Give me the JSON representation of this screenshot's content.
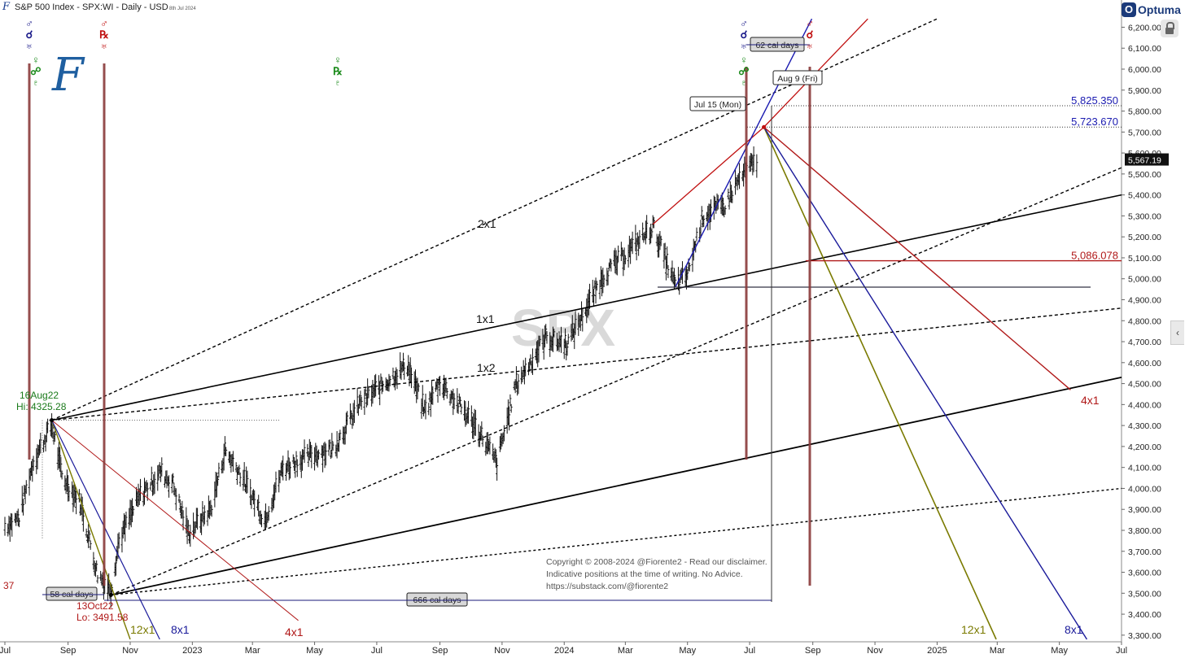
{
  "header": {
    "title": "S&P 500 Index - SPX:WI - Daily - USD",
    "date": "8th Jul 2024"
  },
  "branding": {
    "optuma_label": "Optuma",
    "optuma_mark": "O",
    "side_tab_glyph": "‹",
    "small_logo_glyph": "F",
    "fiorente_glyph": "F",
    "lock_icon": "lock-icon"
  },
  "chart_data": {
    "type": "line",
    "title": "S&P 500 Index - SPX:WI - Daily - USD",
    "y_axis": {
      "ylim": [
        3280,
        6260
      ],
      "ticks": [
        3300,
        3400,
        3500,
        3600,
        3700,
        3800,
        3900,
        4000,
        4100,
        4200,
        4300,
        4400,
        4500,
        4600,
        4700,
        4800,
        4900,
        5000,
        5100,
        5200,
        5300,
        5400,
        5500,
        5600,
        5700,
        5800,
        5900,
        6000,
        6100,
        6200
      ],
      "tick_labels": [
        "3,300.00",
        "3,400.00",
        "3,500.00",
        "3,600.00",
        "3,700.00",
        "3,800.00",
        "3,900.00",
        "4,000.00",
        "4,100.00",
        "4,200.00",
        "4,300.00",
        "4,400.00",
        "4,500.00",
        "4,600.00",
        "4,700.00",
        "4,800.00",
        "4,900.00",
        "5,000.00",
        "5,100.00",
        "5,200.00",
        "5,300.00",
        "5,400.00",
        "5,500.00",
        "5,600.00",
        "5,700.00",
        "5,800.00",
        "5,900.00",
        "6,000.00",
        "6,100.00",
        "6,200.00"
      ],
      "last_price_label": "5,567.19",
      "last_price": 5567.19
    },
    "x_axis": {
      "range": [
        "2022-07-01",
        "2025-07-01"
      ],
      "ticks": [
        {
          "label": "Jul",
          "date": "2022-07-01"
        },
        {
          "label": "Sep",
          "date": "2022-09-01"
        },
        {
          "label": "Nov",
          "date": "2022-11-01"
        },
        {
          "label": "2023",
          "date": "2023-01-01"
        },
        {
          "label": "Mar",
          "date": "2023-03-01"
        },
        {
          "label": "May",
          "date": "2023-05-01"
        },
        {
          "label": "Jul",
          "date": "2023-07-01"
        },
        {
          "label": "Sep",
          "date": "2023-09-01"
        },
        {
          "label": "Nov",
          "date": "2023-11-01"
        },
        {
          "label": "2024",
          "date": "2024-01-01"
        },
        {
          "label": "Mar",
          "date": "2024-03-01"
        },
        {
          "label": "May",
          "date": "2024-05-01"
        },
        {
          "label": "Jul",
          "date": "2024-07-01"
        },
        {
          "label": "Sep",
          "date": "2024-09-01"
        },
        {
          "label": "Nov",
          "date": "2024-11-01"
        },
        {
          "label": "2025",
          "date": "2025-01-01"
        },
        {
          "label": "Mar",
          "date": "2025-03-01"
        },
        {
          "label": "May",
          "date": "2025-05-01"
        },
        {
          "label": "Jul",
          "date": "2025-07-01"
        }
      ]
    },
    "price_series": [
      [
        "2022-07-01",
        3820
      ],
      [
        "2022-07-15",
        3860
      ],
      [
        "2022-07-29",
        4130
      ],
      [
        "2022-08-16",
        4305
      ],
      [
        "2022-08-26",
        4060
      ],
      [
        "2022-09-13",
        3930
      ],
      [
        "2022-09-30",
        3590
      ],
      [
        "2022-10-13",
        3520
      ],
      [
        "2022-10-21",
        3750
      ],
      [
        "2022-11-10",
        3960
      ],
      [
        "2022-12-01",
        4080
      ],
      [
        "2022-12-13",
        4020
      ],
      [
        "2022-12-28",
        3790
      ],
      [
        "2023-01-19",
        3900
      ],
      [
        "2023-02-02",
        4180
      ],
      [
        "2023-02-16",
        4080
      ],
      [
        "2023-03-13",
        3850
      ],
      [
        "2023-03-31",
        4100
      ],
      [
        "2023-04-28",
        4160
      ],
      [
        "2023-05-19",
        4190
      ],
      [
        "2023-06-15",
        4410
      ],
      [
        "2023-07-31",
        4590
      ],
      [
        "2023-08-17",
        4370
      ],
      [
        "2023-09-01",
        4510
      ],
      [
        "2023-10-06",
        4300
      ],
      [
        "2023-10-27",
        4120
      ],
      [
        "2023-11-14",
        4490
      ],
      [
        "2023-12-14",
        4720
      ],
      [
        "2024-01-04",
        4690
      ],
      [
        "2024-02-09",
        5020
      ],
      [
        "2024-03-08",
        5150
      ],
      [
        "2024-03-28",
        5250
      ],
      [
        "2024-04-19",
        4970
      ],
      [
        "2024-05-01",
        5020
      ],
      [
        "2024-05-16",
        5300
      ],
      [
        "2024-06-07",
        5350
      ],
      [
        "2024-06-20",
        5470
      ],
      [
        "2024-07-08",
        5567
      ]
    ],
    "series": [
      {
        "name": "1x1",
        "points": [
          [
            "2022-08-16",
            4325.28
          ],
          [
            "2025-07-01",
            5400
          ]
        ]
      },
      {
        "name": "2x1",
        "points": [
          [
            "2022-08-16",
            4325.28
          ],
          [
            "2025-01-01",
            6240
          ]
        ]
      },
      {
        "name": "1x2",
        "points": [
          [
            "2022-08-16",
            4325.28
          ],
          [
            "2025-07-01",
            4860
          ]
        ]
      },
      {
        "name": "",
        "points": [
          [
            "2022-10-13",
            3491.58
          ],
          [
            "2025-07-01",
            4530
          ]
        ]
      },
      {
        "name": "",
        "points": [
          [
            "2022-10-13",
            3491.58
          ],
          [
            "2025-07-01",
            4000
          ]
        ]
      },
      {
        "name": "",
        "points": [
          [
            "2022-10-13",
            3491.58
          ],
          [
            "2025-07-01",
            5530
          ]
        ]
      },
      {
        "name": "12x1",
        "points": [
          [
            "2022-08-16",
            4325.28
          ],
          [
            "2022-11-01",
            3280
          ]
        ]
      },
      {
        "name": "8x1",
        "points": [
          [
            "2022-08-16",
            4325.28
          ],
          [
            "2022-11-30",
            3280
          ]
        ]
      },
      {
        "name": "4x1",
        "points": [
          [
            "2022-08-16",
            4325.28
          ],
          [
            "2023-04-15",
            3370
          ]
        ]
      },
      {
        "name": "12x1",
        "points": [
          [
            "2024-07-15",
            5723.67
          ],
          [
            "2025-02-28",
            3280
          ]
        ]
      },
      {
        "name": "8x1",
        "points": [
          [
            "2024-07-15",
            5723.67
          ],
          [
            "2025-05-28",
            3280
          ]
        ]
      },
      {
        "name": "4x1",
        "points": [
          [
            "2024-07-15",
            5723.67
          ],
          [
            "2025-05-12",
            4470
          ]
        ]
      },
      {
        "name": "",
        "points": [
          [
            "2024-03-28",
            5260
          ],
          [
            "2024-07-15",
            5723.67
          ],
          [
            "2024-10-25",
            6240
          ]
        ]
      },
      {
        "name": "",
        "points": [
          [
            "2024-04-19",
            4960
          ],
          [
            "2024-08-31",
            6240
          ]
        ]
      }
    ],
    "levels": [
      {
        "label": "5,825.350",
        "value": 5825.35
      },
      {
        "label": "5,723.670",
        "value": 5723.67
      },
      {
        "label": "5,086.078",
        "value": 5086.078
      },
      {
        "label": "",
        "value": 4960
      }
    ],
    "annotations": [
      {
        "text": "16Aug22",
        "date": "2022-08-16",
        "value": 4325.28
      },
      {
        "text": "Hi: 4325.28",
        "date": "2022-08-16",
        "value": 4325.28
      },
      {
        "text": "13Oct22",
        "date": "2022-10-13",
        "value": 3491.58
      },
      {
        "text": "Lo: 3491.58",
        "date": "2022-10-13",
        "value": 3491.58
      },
      {
        "text": "Jul 15 (Mon)",
        "date": "2024-07-15"
      },
      {
        "text": "Aug 9 (Fri)",
        "date": "2024-08-09"
      },
      {
        "text": "62 cal days"
      },
      {
        "text": "58 cal days"
      },
      {
        "text": "666 cal days"
      },
      {
        "text": "37"
      }
    ],
    "watermark": "SPX",
    "copyright": [
      "Copyright © 2008-2024 @Fiorente2 -  Read our disclaimer.",
      "Indicative positions at the time of writing. No Advice.",
      "https://substack.com/@fiorente2"
    ],
    "planet_markers": [
      {
        "date": "2022-08-04",
        "symbols": [
          "♂",
          "☌",
          "♅"
        ],
        "color": "blue"
      },
      {
        "date": "2022-08-08",
        "symbols": [
          "♀",
          "☍",
          "♇"
        ],
        "color": "green"
      },
      {
        "date": "2022-10-13",
        "symbols": [
          "♂",
          "℞",
          "♅"
        ],
        "color": "red"
      },
      {
        "date": "2023-07-01",
        "symbols": [
          "♀",
          "℞",
          "♇"
        ],
        "color": "green"
      },
      {
        "date": "2024-07-15",
        "symbols": [
          "♂",
          "☌",
          "♅"
        ],
        "color": "blue"
      },
      {
        "date": "2024-07-15",
        "symbols": [
          "♀",
          "☍",
          "♇"
        ],
        "color": "green"
      },
      {
        "date": "2024-09-04",
        "symbols": [
          "♂",
          "☌",
          "♅"
        ],
        "color": "red"
      }
    ]
  }
}
